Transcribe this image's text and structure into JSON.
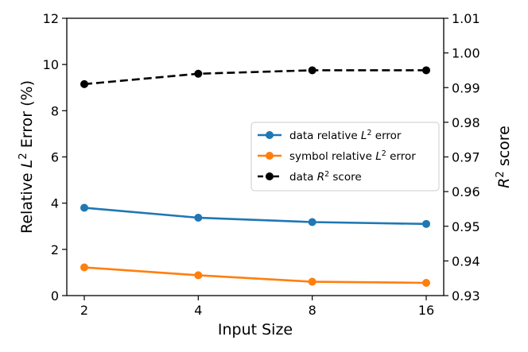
{
  "chart_data": {
    "type": "line",
    "categories": [
      "2",
      "4",
      "8",
      "16"
    ],
    "xlabel": "Input Size",
    "ylabel": {
      "prefix": "Relative ",
      "var": "L",
      "sup": "2",
      "suffix": " Error (%)"
    },
    "y2label": {
      "var": "R",
      "sup": "2",
      "suffix": " score"
    },
    "ylim": [
      0,
      12
    ],
    "yticks": [
      "0",
      "2",
      "4",
      "6",
      "8",
      "10",
      "12"
    ],
    "y2lim": [
      0.93,
      1.01
    ],
    "y2ticks": [
      "0.93",
      "0.94",
      "0.95",
      "0.96",
      "0.97",
      "0.98",
      "0.99",
      "1.00",
      "1.01"
    ],
    "legend_position": "center-right",
    "series": [
      {
        "legend": {
          "prefix": "data relative ",
          "var": "L",
          "sup": "2",
          "suffix": " error"
        },
        "axis": "left",
        "color": "#1f77b4",
        "linestyle": "solid",
        "values": [
          3.8,
          3.37,
          3.18,
          3.1
        ]
      },
      {
        "legend": {
          "prefix": "symbol relative ",
          "var": "L",
          "sup": "2",
          "suffix": " error"
        },
        "axis": "left",
        "color": "#ff7f0e",
        "linestyle": "solid",
        "values": [
          1.22,
          0.88,
          0.6,
          0.55
        ]
      },
      {
        "legend": {
          "prefix": "data ",
          "var": "R",
          "sup": "2",
          "suffix": " score"
        },
        "axis": "right",
        "color": "#000000",
        "linestyle": "dashed",
        "values": [
          0.991,
          0.994,
          0.995,
          0.995
        ]
      }
    ]
  }
}
